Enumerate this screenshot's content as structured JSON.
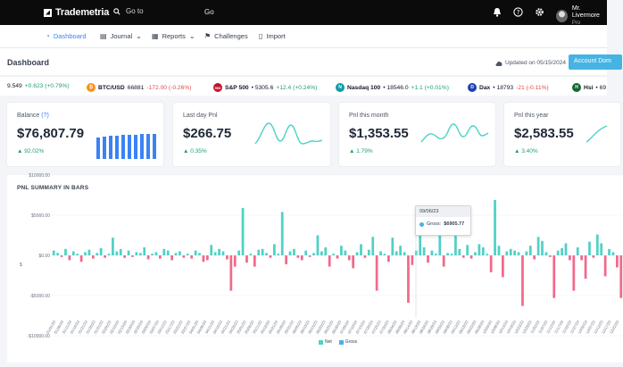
{
  "topbar": {
    "brand": "Trademetria",
    "search_placeholder": "Go to",
    "goto_text": "Go",
    "icons": [
      "bell-icon",
      "help-icon",
      "gear-icon"
    ],
    "user_name": "Mr. Livermore",
    "user_sub": "Pro"
  },
  "nav": {
    "items": [
      {
        "label": "Dashboard",
        "icon": "dashboard-icon",
        "active": true
      },
      {
        "label": "Journal",
        "icon": "journal-icon",
        "dropdown": true
      },
      {
        "label": "Reports",
        "icon": "reports-icon",
        "dropdown": true
      },
      {
        "label": "Challenges",
        "icon": "challenges-icon"
      },
      {
        "label": "Import",
        "icon": "import-icon"
      }
    ]
  },
  "dashboard": {
    "title": "Dashboard",
    "updated": "Updated on 05/15/2024",
    "account_button": "Account Dom"
  },
  "ticker": [
    {
      "name": "",
      "price": "9.549",
      "change": "+0.623 (+0.79%)",
      "dir": "up"
    },
    {
      "name": "BTC/USD",
      "price": "66881",
      "change": "-172.00 (-0.26%)",
      "dir": "dn",
      "badge": "₿",
      "color": "#f7931a"
    },
    {
      "name": "S&P 500",
      "price": "• 5305.6",
      "change": "+12.4 (+0.24%)",
      "dir": "up",
      "badge": "500",
      "color": "#c8102e"
    },
    {
      "name": "Nasdaq 100",
      "price": "• 18546.0",
      "change": "+1.1 (+0.01%)",
      "dir": "up",
      "badge": "N",
      "color": "#0f9aa8"
    },
    {
      "name": "Dax",
      "price": "• 18793",
      "change": "-21 (-0.11%)",
      "dir": "dn",
      "badge": "D",
      "color": "#1e40af"
    },
    {
      "name": "Hsi",
      "price": "• 69",
      "change": "",
      "dir": "up",
      "badge": "H",
      "color": "#166534"
    }
  ],
  "cards": [
    {
      "label": "Balance",
      "help": "(?)",
      "value": "$76,807.79",
      "pct": "92.02%"
    },
    {
      "label": "Last day Pnl",
      "value": "$266.75",
      "pct": "0.35%"
    },
    {
      "label": "Pnl this month",
      "value": "$1,353.55",
      "pct": "1.79%"
    },
    {
      "label": "Pnl this year",
      "value": "$2,583.55",
      "pct": "3.40%"
    }
  ],
  "colors": {
    "accent": "#46b3e3",
    "net": "#4fd1c5",
    "gross": "#46b3e3",
    "neg": "#f06a8a",
    "up": "#22a06b",
    "down": "#e5484d"
  },
  "chart_data": {
    "type": "bar",
    "title": "PNL SUMMARY IN BARS",
    "ylabel": "$",
    "y_ticks": [
      "$10000.00",
      "$5000.00",
      "$0.00",
      "-$5000.00",
      "-$10000.00"
    ],
    "ylim": [
      -12000,
      12000
    ],
    "series": [
      {
        "name": "Net",
        "values": [
          600,
          300,
          -200,
          800,
          -600,
          500,
          200,
          -800,
          400,
          700,
          -400,
          300,
          900,
          -300,
          200,
          2200,
          500,
          800,
          -300,
          600,
          -200,
          400,
          300,
          1000,
          -500,
          200,
          400,
          -400,
          800,
          600,
          -600,
          300,
          500,
          -300,
          200,
          -400,
          600,
          300,
          -800,
          -600,
          1300,
          400,
          800,
          500,
          -500,
          -4400,
          -1400,
          600,
          5900,
          -900,
          200,
          -1400,
          700,
          800,
          300,
          -300,
          1400,
          200,
          5400,
          -1100,
          500,
          800,
          -300,
          -600,
          600,
          -200,
          300,
          2500,
          500,
          1000,
          -1400,
          200,
          -400,
          1200,
          600,
          -600,
          -1600,
          400,
          1400,
          -300,
          700,
          2300,
          -4400,
          500,
          200,
          -800,
          2200,
          500,
          1200,
          400,
          -5900,
          -1200,
          600,
          3000,
          1000,
          -900,
          600,
          200,
          2700,
          -1400,
          300,
          200,
          3600,
          800,
          -300,
          1300,
          -400,
          400,
          1400,
          1000,
          200,
          -2100,
          6900,
          1200,
          -2700,
          500,
          800,
          600,
          400,
          -6300,
          500,
          1200,
          -500,
          2300,
          1800,
          400,
          -200,
          -5300,
          600,
          900,
          1500,
          -600,
          -4400,
          1000,
          -600,
          -2900,
          1700,
          -300,
          2600,
          1500,
          -2600,
          800,
          400,
          -1500,
          -5300
        ]
      },
      {
        "name": "Gross",
        "values": []
      }
    ],
    "x_labels": [
      "01/01/23",
      "01/06/23",
      "01/11/23",
      "01/16/23",
      "01/21/23",
      "01/26/23",
      "01/31/23",
      "02/05/23",
      "02/10/23",
      "02/15/23",
      "02/20/23",
      "02/25/23",
      "03/02/23",
      "03/07/23",
      "03/12/23",
      "03/17/23",
      "03/22/23",
      "03/27/23",
      "04/01/23",
      "04/06/23",
      "04/11/23",
      "04/16/23",
      "04/21/23",
      "04/26/23",
      "05/01/23",
      "05/06/23",
      "05/11/23",
      "05/16/23",
      "05/21/23",
      "05/26/23",
      "05/31/23",
      "06/05/23",
      "06/10/23",
      "06/15/23",
      "06/20/23",
      "06/25/23",
      "06/30/23",
      "07/05/23",
      "07/10/23",
      "07/15/23",
      "07/20/23",
      "07/25/23",
      "07/30/23",
      "08/04/23",
      "08/09/23",
      "08/14/23",
      "08/19/23",
      "08/24/23",
      "08/29/23",
      "09/03/23",
      "09/08/23",
      "09/13/23",
      "09/18/23",
      "09/23/23",
      "09/28/23",
      "10/03/23",
      "10/08/23",
      "10/13/23",
      "10/18/23",
      "10/23/23",
      "10/28/23",
      "11/02/23",
      "11/07/23",
      "11/12/23",
      "11/17/23",
      "11/22/23",
      "11/27/23",
      "12/02/23",
      "12/07/23",
      "12/12/23",
      "12/17/23",
      "12/22/23"
    ],
    "tooltip": {
      "date": "09/06/23",
      "label": "Gross:",
      "value": "$6905.77"
    },
    "legend": [
      "Net",
      "Gross"
    ],
    "legend_position": "bottom"
  }
}
